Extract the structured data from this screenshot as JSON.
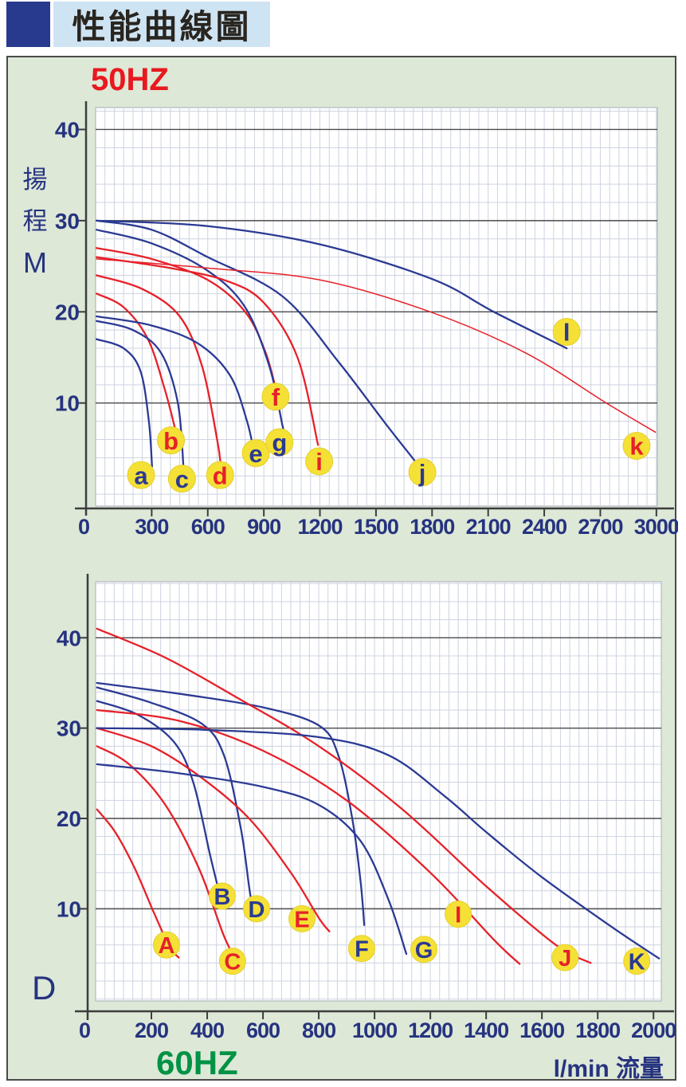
{
  "header": {
    "title": "性能曲線圖"
  },
  "colors": {
    "navy": "#2b3a93",
    "red": "#e62129",
    "title_red": "#e8191f",
    "title_green": "#009245",
    "label_bg": "#f5e136",
    "label_edge": "#e3cf2e",
    "grid_minor": "#cdd3e0",
    "grid_major": "#4b4b4b",
    "axis": "#3d3d3d",
    "panel_bg": "#dde8d7",
    "banner_bg": "#cfe4f3",
    "square_navy": "#283a8e",
    "tick_text": "#26337f",
    "plot_border": "#a8adb8"
  },
  "chart_data": [
    {
      "id": "50hz",
      "type": "line",
      "title": "50HZ",
      "title_color_key": "title_red",
      "y_axis_label": [
        "揚",
        "程",
        "M"
      ],
      "xlabel": "",
      "ylabel": "揚程 M",
      "x_ticks": [
        0,
        300,
        600,
        900,
        1200,
        1500,
        1800,
        2100,
        2400,
        2700,
        3000
      ],
      "y_ticks": [
        10,
        20,
        30,
        40
      ],
      "x_range": [
        0,
        3005
      ],
      "y_range": [
        -1.3,
        42.4
      ],
      "x_minor_step": 50,
      "y_minor_step": 2,
      "grid": true,
      "legend": "curve labels in yellow circles",
      "series": [
        {
          "name": "a",
          "color": "navy",
          "points": [
            [
              5,
              17
            ],
            [
              150,
              16
            ],
            [
              240,
              13.5
            ],
            [
              285,
              8
            ],
            [
              302,
              3
            ]
          ],
          "label_at": [
            243,
            2.1
          ]
        },
        {
          "name": "b",
          "color": "red",
          "points": [
            [
              5,
              22
            ],
            [
              150,
              20.5
            ],
            [
              280,
              17
            ],
            [
              370,
              11.5
            ],
            [
              425,
              7.2
            ]
          ],
          "label_at": [
            403,
            5.9
          ]
        },
        {
          "name": "c",
          "color": "navy",
          "points": [
            [
              5,
              19
            ],
            [
              200,
              18
            ],
            [
              350,
              15.5
            ],
            [
              440,
              10
            ],
            [
              470,
              3
            ]
          ],
          "label_at": [
            462,
            1.7
          ]
        },
        {
          "name": "d",
          "color": "red",
          "points": [
            [
              5,
              24
            ],
            [
              250,
              22.5
            ],
            [
              450,
              19.5
            ],
            [
              570,
              14
            ],
            [
              650,
              6
            ],
            [
              672,
              2.8
            ]
          ],
          "label_at": [
            666,
            2.1
          ]
        },
        {
          "name": "e",
          "color": "navy",
          "points": [
            [
              5,
              19.5
            ],
            [
              300,
              18.5
            ],
            [
              550,
              16.5
            ],
            [
              720,
              13
            ],
            [
              810,
              8
            ],
            [
              845,
              4.8
            ]
          ],
          "label_at": [
            857,
            4.5
          ]
        },
        {
          "name": "f",
          "color": "red",
          "points": [
            [
              5,
              27
            ],
            [
              300,
              25.8
            ],
            [
              600,
              23.5
            ],
            [
              800,
              20
            ],
            [
              910,
              15.5
            ],
            [
              975,
              10.6
            ]
          ],
          "label_at": [
            963,
            10.7
          ]
        },
        {
          "name": "g",
          "color": "navy",
          "points": [
            [
              5,
              29
            ],
            [
              300,
              27.5
            ],
            [
              600,
              24.5
            ],
            [
              800,
              20.5
            ],
            [
              930,
              14
            ],
            [
              1000,
              7.5
            ],
            [
              1015,
              6.3
            ]
          ],
          "label_at": [
            984,
            5.7
          ]
        },
        {
          "name": "i",
          "color": "red",
          "points": [
            [
              5,
              26
            ],
            [
              400,
              24.8
            ],
            [
              700,
              23.4
            ],
            [
              900,
              21
            ],
            [
              1080,
              15
            ],
            [
              1190,
              5.4
            ]
          ],
          "label_at": [
            1196,
            3.6
          ]
        },
        {
          "name": "j",
          "color": "navy",
          "points": [
            [
              5,
              30
            ],
            [
              300,
              29
            ],
            [
              600,
              26
            ],
            [
              1000,
              21.7
            ],
            [
              1300,
              14.5
            ],
            [
              1560,
              7.5
            ],
            [
              1780,
              1.8
            ]
          ],
          "label_at": [
            1748,
            2.4
          ]
        },
        {
          "name": "k",
          "color": "red",
          "points": [
            [
              5,
              25.8
            ],
            [
              600,
              24.8
            ],
            [
              1200,
              23.5
            ],
            [
              1790,
              20
            ],
            [
              2300,
              15.5
            ],
            [
              2732,
              10
            ],
            [
              2995,
              6.8
            ]
          ],
          "thin": true,
          "label_at": [
            2894,
            5.3
          ]
        },
        {
          "name": "l",
          "color": "navy",
          "points": [
            [
              5,
              30
            ],
            [
              600,
              29.4
            ],
            [
              1200,
              27.4
            ],
            [
              1800,
              23.6
            ],
            [
              2130,
              20
            ],
            [
              2520,
              16
            ]
          ],
          "label_at": [
            2520,
            17.8
          ]
        }
      ]
    },
    {
      "id": "60hz",
      "type": "line",
      "title": "60HZ",
      "title_color_key": "title_green",
      "corner_label": "D",
      "x_unit_label": "l/min 流量",
      "xlabel": "l/min 流量",
      "ylabel": "M",
      "x_ticks": [
        0,
        200,
        400,
        600,
        800,
        1000,
        1200,
        1400,
        1600,
        1800,
        2000
      ],
      "y_ticks": [
        10,
        20,
        30,
        40
      ],
      "x_range": [
        0,
        2028
      ],
      "y_range": [
        -0.2,
        46.2
      ],
      "x_minor_step": 33.33,
      "y_minor_step": 2,
      "grid": true,
      "legend": "curve labels in yellow circles",
      "series": [
        {
          "name": "A",
          "color": "red",
          "points": [
            [
              5,
              21
            ],
            [
              70,
              18.5
            ],
            [
              140,
              14.5
            ],
            [
              210,
              9.5
            ],
            [
              265,
              5.8
            ],
            [
              298,
              4.6
            ]
          ],
          "label_at": [
            254,
            6.0
          ]
        },
        {
          "name": "B",
          "color": "navy",
          "points": [
            [
              5,
              33
            ],
            [
              150,
              31.5
            ],
            [
              280,
              28.5
            ],
            [
              350,
              24
            ],
            [
              410,
              16
            ],
            [
              440,
              12.2
            ]
          ],
          "label_at": [
            454,
            11.4
          ]
        },
        {
          "name": "C",
          "color": "red",
          "points": [
            [
              5,
              28
            ],
            [
              120,
              26
            ],
            [
              250,
              21.5
            ],
            [
              370,
              14.5
            ],
            [
              460,
              7
            ],
            [
              510,
              4
            ]
          ],
          "label_at": [
            491,
            4.2
          ]
        },
        {
          "name": "D",
          "color": "navy",
          "points": [
            [
              5,
              34.5
            ],
            [
              200,
              32.8
            ],
            [
              380,
              30.5
            ],
            [
              460,
              27
            ],
            [
              520,
              19
            ],
            [
              550,
              12.5
            ],
            [
              560,
              10.5
            ]
          ],
          "label_at": [
            577,
            10.0
          ]
        },
        {
          "name": "E",
          "color": "red",
          "points": [
            [
              5,
              30
            ],
            [
              200,
              28
            ],
            [
              380,
              24.5
            ],
            [
              550,
              20
            ],
            [
              700,
              14
            ],
            [
              800,
              9
            ],
            [
              838,
              7.5
            ]
          ],
          "label_at": [
            740,
            8.9
          ]
        },
        {
          "name": "F",
          "color": "navy",
          "points": [
            [
              5,
              35
            ],
            [
              300,
              33.8
            ],
            [
              600,
              32.3
            ],
            [
              800,
              30.3
            ],
            [
              870,
              27
            ],
            [
              920,
              20
            ],
            [
              950,
              13
            ],
            [
              963,
              8.2
            ]
          ],
          "label_at": [
            954,
            5.6
          ]
        },
        {
          "name": "G",
          "color": "navy",
          "points": [
            [
              5,
              26
            ],
            [
              300,
              25
            ],
            [
              600,
              23.5
            ],
            [
              800,
              21.5
            ],
            [
              950,
              17.5
            ],
            [
              1050,
              11
            ],
            [
              1114,
              5
            ]
          ],
          "label_at": [
            1177,
            5.5
          ]
        },
        {
          "name": "I",
          "color": "red",
          "points": [
            [
              5,
              32
            ],
            [
              300,
              30.8
            ],
            [
              600,
              27.5
            ],
            [
              900,
              22
            ],
            [
              1200,
              14
            ],
            [
              1430,
              6.5
            ],
            [
              1520,
              3.9
            ]
          ],
          "label_at": [
            1300,
            9.4
          ]
        },
        {
          "name": "J",
          "color": "red",
          "points": [
            [
              5,
              41
            ],
            [
              250,
              37.8
            ],
            [
              500,
              33.5
            ],
            [
              800,
              28
            ],
            [
              1100,
              21
            ],
            [
              1400,
              12.5
            ],
            [
              1650,
              6
            ],
            [
              1775,
              4
            ]
          ],
          "label_at": [
            1683,
            4.6
          ]
        },
        {
          "name": "K",
          "color": "navy",
          "points": [
            [
              5,
              30
            ],
            [
              400,
              29.8
            ],
            [
              800,
              29
            ],
            [
              1050,
              27
            ],
            [
              1250,
              22.5
            ],
            [
              1400,
              18.5
            ],
            [
              1600,
              13.5
            ],
            [
              1850,
              8
            ],
            [
              2020,
              4.5
            ]
          ],
          "label_at": [
            1940,
            4.2
          ]
        }
      ]
    }
  ]
}
